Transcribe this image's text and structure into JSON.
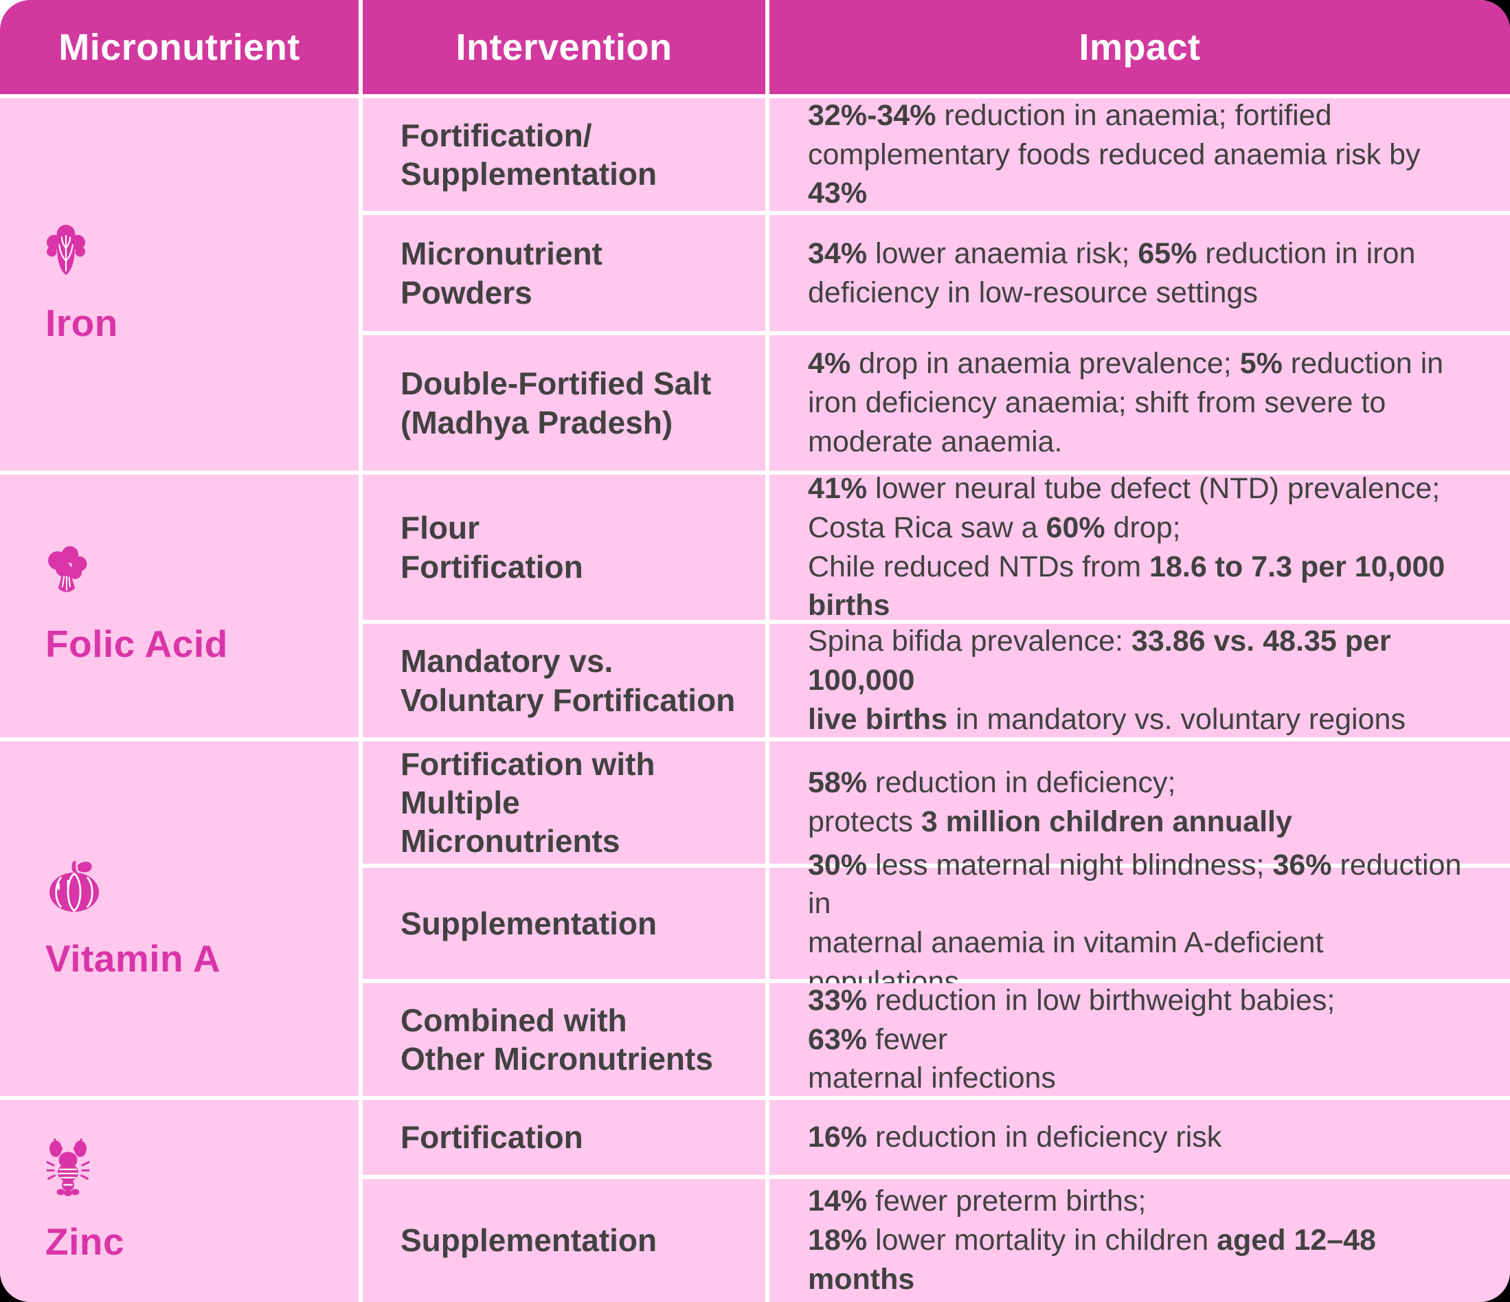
{
  "colors": {
    "header_bg": "#d2399f",
    "row_bg": "#ffc8ec",
    "label": "#d935a8",
    "text": "#414141",
    "divider": "#ffffff",
    "page_topleft": "#ffffff",
    "page_bg": "#000000"
  },
  "header": {
    "columns": [
      "Micronutrient",
      "Intervention",
      "Impact"
    ]
  },
  "groups": [
    {
      "label": "Iron",
      "icon": "lettuce-icon",
      "rows": [
        {
          "intervention": "Fortification/\nSupplementation",
          "impact": [
            [
              "b",
              "32%-34%"
            ],
            [
              "",
              " reduction in anaemia; fortified\ncomplementary foods reduced anaemia risk by "
            ],
            [
              "b",
              "43%"
            ]
          ]
        },
        {
          "intervention": "Micronutrient\nPowders",
          "impact": [
            [
              "b",
              "34%"
            ],
            [
              "",
              " lower anaemia risk; "
            ],
            [
              "b",
              "65%"
            ],
            [
              "",
              " reduction in iron\ndeficiency in low-resource settings"
            ]
          ]
        },
        {
          "intervention": "Double-Fortified Salt\n(Madhya Pradesh)",
          "impact": [
            [
              "b",
              "4%"
            ],
            [
              "",
              " drop in anaemia prevalence; "
            ],
            [
              "b",
              "5%"
            ],
            [
              "",
              " reduction in\niron deficiency anaemia; shift from severe to\nmoderate anaemia."
            ]
          ]
        }
      ]
    },
    {
      "label": "Folic Acid",
      "icon": "broccoli-icon",
      "rows": [
        {
          "intervention": "Flour\nFortification",
          "impact": [
            [
              "b",
              "41%"
            ],
            [
              "",
              " lower neural tube defect (NTD) prevalence;\nCosta Rica saw a "
            ],
            [
              "b",
              "60%"
            ],
            [
              "",
              " drop;\nChile reduced NTDs from "
            ],
            [
              "b",
              "18.6 to 7.3 per 10,000 births"
            ]
          ]
        },
        {
          "intervention": "Mandatory vs.\nVoluntary Fortification",
          "impact": [
            [
              "",
              "Spina bifida prevalence: "
            ],
            [
              "b",
              "33.86 vs. 48.35 per 100,000\nlive births"
            ],
            [
              "",
              " in mandatory vs. voluntary regions"
            ]
          ]
        }
      ]
    },
    {
      "label": "Vitamin A",
      "icon": "pumpkin-icon",
      "rows": [
        {
          "intervention": "Fortification with\nMultiple Micronutrients",
          "impact": [
            [
              "b",
              "58%"
            ],
            [
              "",
              " reduction in deficiency;\nprotects "
            ],
            [
              "b",
              "3 million children annually"
            ]
          ]
        },
        {
          "intervention": "Supplementation",
          "impact": [
            [
              "b",
              "30%"
            ],
            [
              "",
              " less maternal night blindness; "
            ],
            [
              "b",
              "36%"
            ],
            [
              "",
              " reduction in\nmaternal anaemia in vitamin A-deficient populations"
            ]
          ]
        },
        {
          "intervention": "Combined with\nOther Micronutrients",
          "impact": [
            [
              "b",
              "33%"
            ],
            [
              "",
              " reduction in low birthweight babies; "
            ],
            [
              "b",
              "63%"
            ],
            [
              "",
              " fewer\nmaternal infections"
            ]
          ]
        }
      ]
    },
    {
      "label": "Zinc",
      "icon": "lobster-icon",
      "rows": [
        {
          "intervention": "Fortification",
          "impact": [
            [
              "b",
              "16%"
            ],
            [
              "",
              " reduction in deficiency risk"
            ]
          ]
        },
        {
          "intervention": "Supplementation",
          "impact": [
            [
              "b",
              "14%"
            ],
            [
              "",
              " fewer preterm births;\n"
            ],
            [
              "b",
              "18%"
            ],
            [
              "",
              " lower mortality in children "
            ],
            [
              "b",
              "aged 12–48 months"
            ]
          ]
        }
      ]
    }
  ]
}
